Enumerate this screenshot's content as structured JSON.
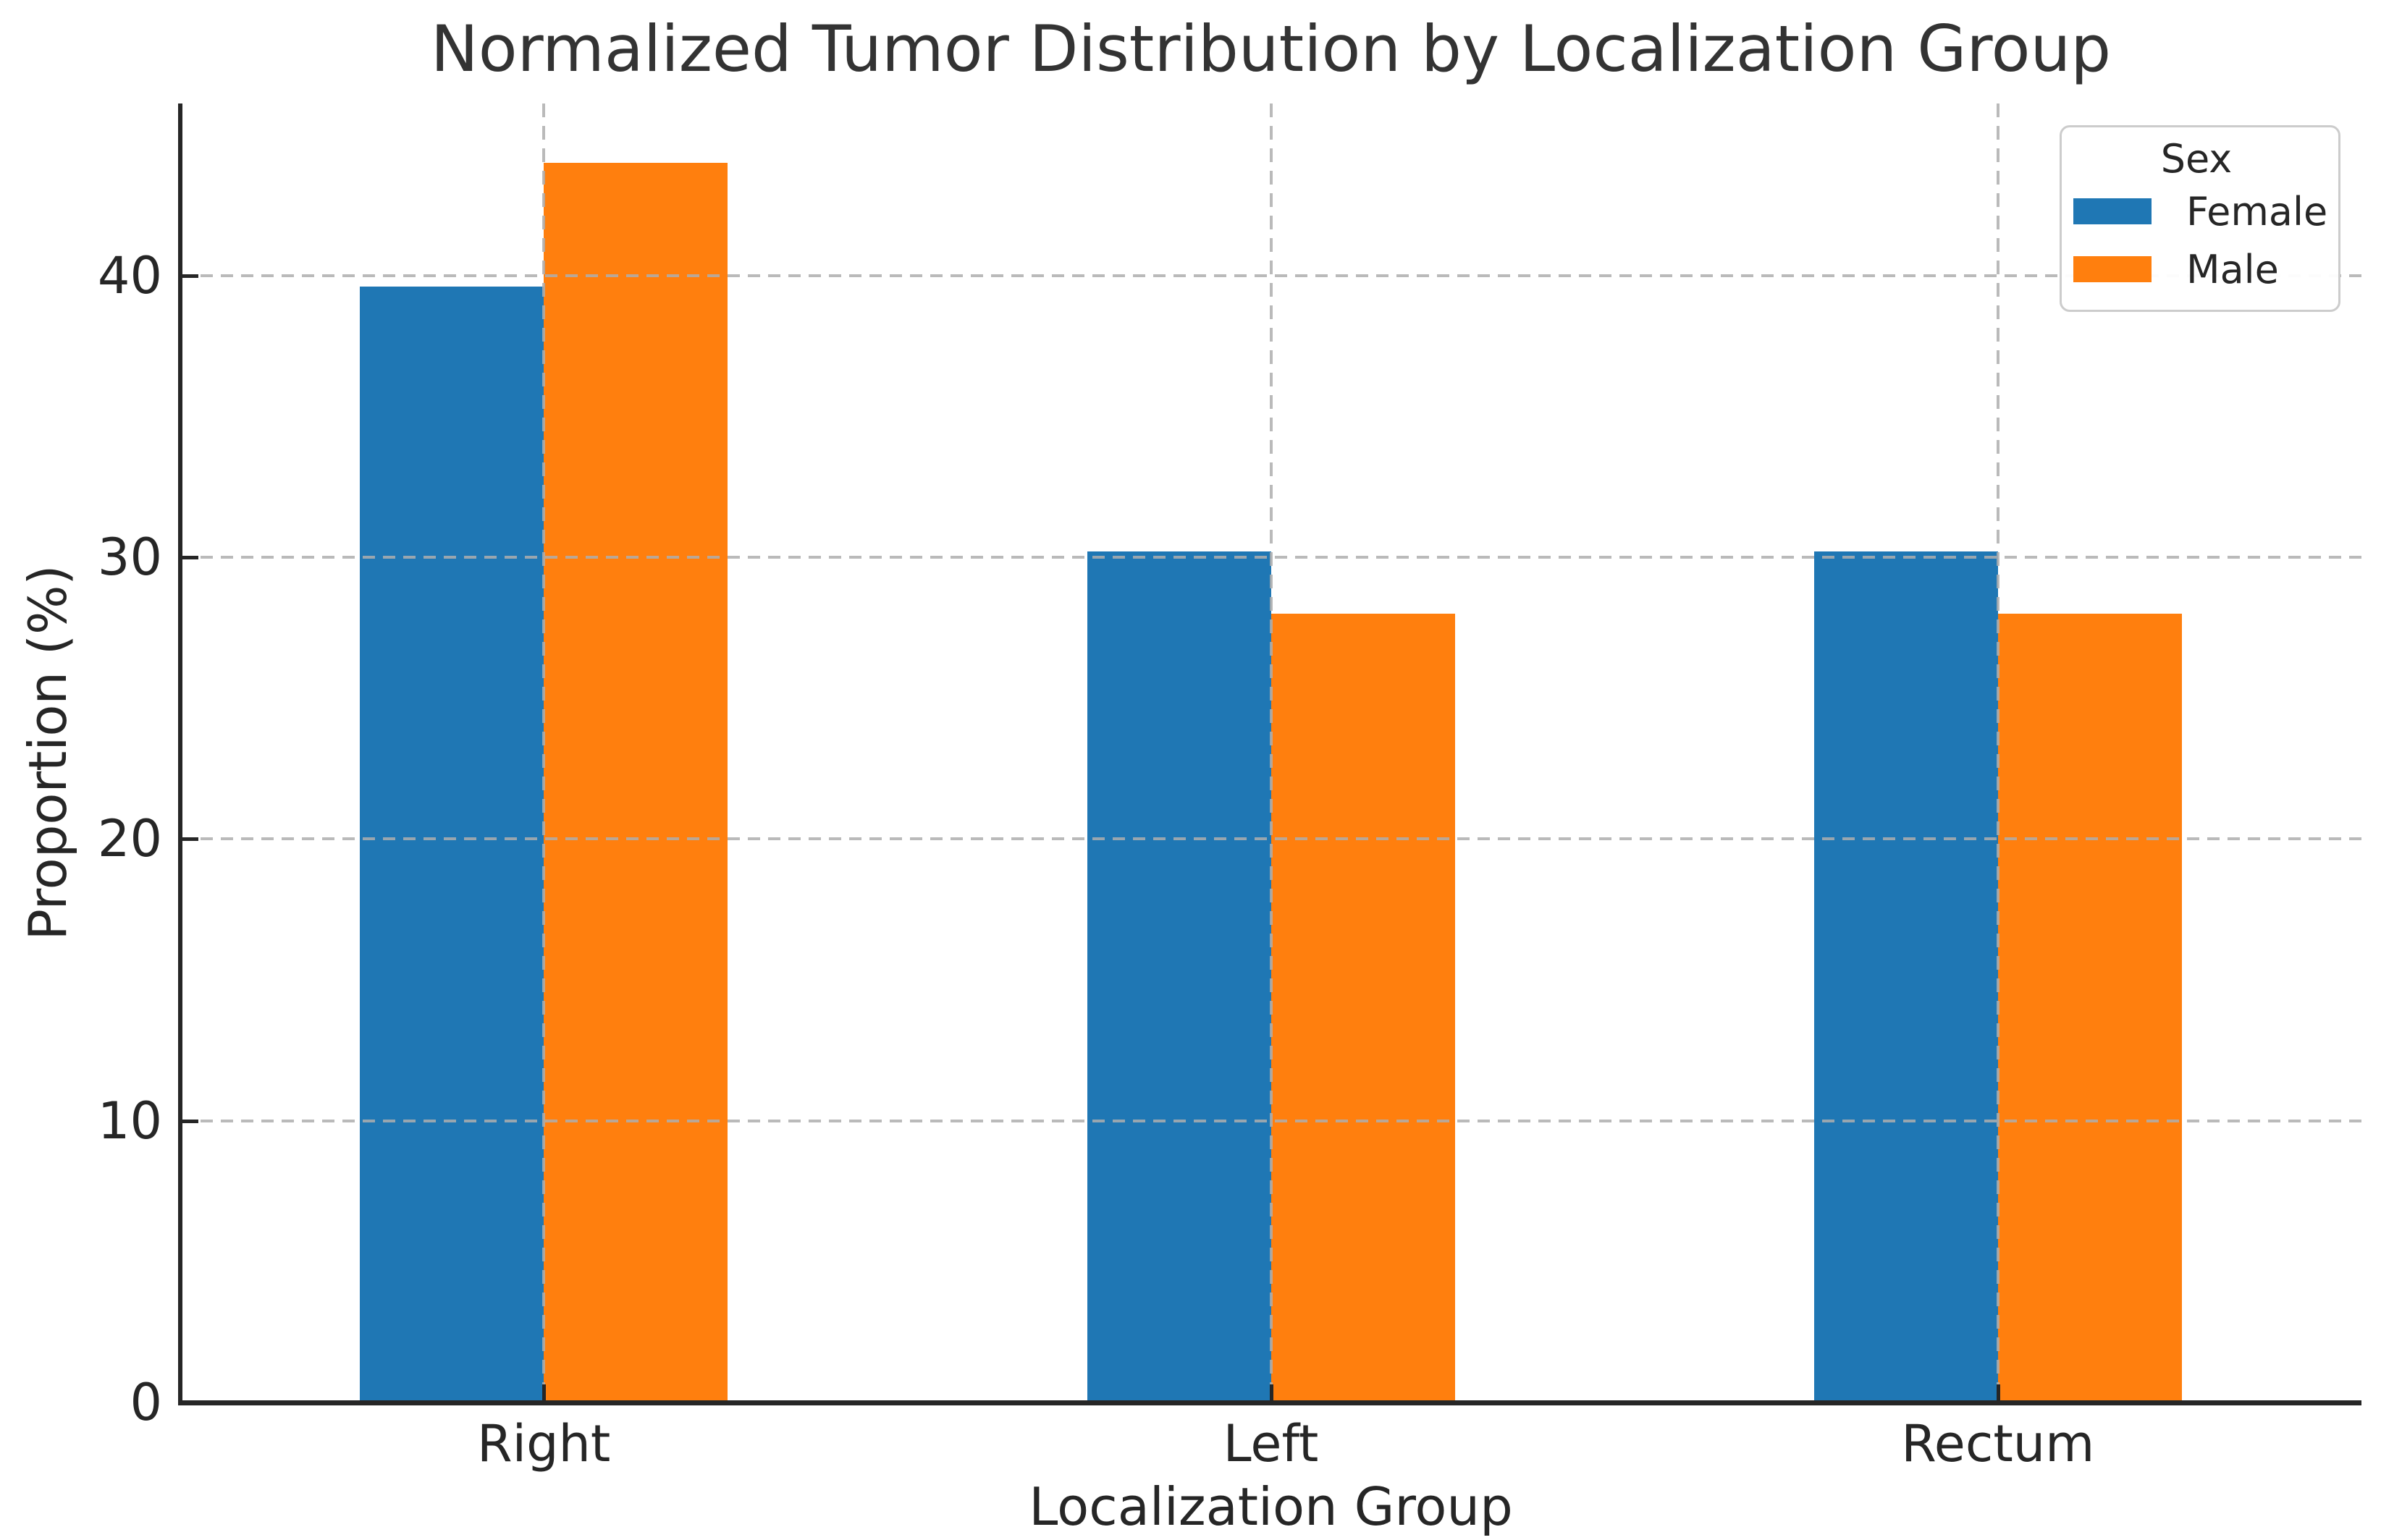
{
  "chart_data": {
    "type": "bar",
    "title": "Normalized Tumor Distribution by Localization Group",
    "xlabel": "Localization Group",
    "ylabel": "Proportion (%)",
    "categories": [
      "Right",
      "Left",
      "Rectum"
    ],
    "series": [
      {
        "name": "Female",
        "color": "#1f77b4",
        "values": [
          39.6,
          30.2,
          30.2
        ]
      },
      {
        "name": "Male",
        "color": "#ff7f0e",
        "values": [
          44.0,
          28.0,
          28.0
        ]
      }
    ],
    "legend": {
      "title": "Sex",
      "position": "upper right"
    },
    "yticks": [
      0,
      10,
      20,
      30,
      40
    ],
    "ylim": [
      0,
      46.1
    ],
    "grid": "dashed gray horizontal lines at yticks and vertical lines at category centers, drawn over bars",
    "colors": {
      "female_bar": "#1f77b4",
      "male_bar": "#ff7f0e",
      "grid_line": "#aeaeae",
      "spine": "#262626",
      "text": "#262626",
      "title_text": "#333333",
      "legend_border": "#cccccc",
      "background": "#ffffff"
    }
  }
}
